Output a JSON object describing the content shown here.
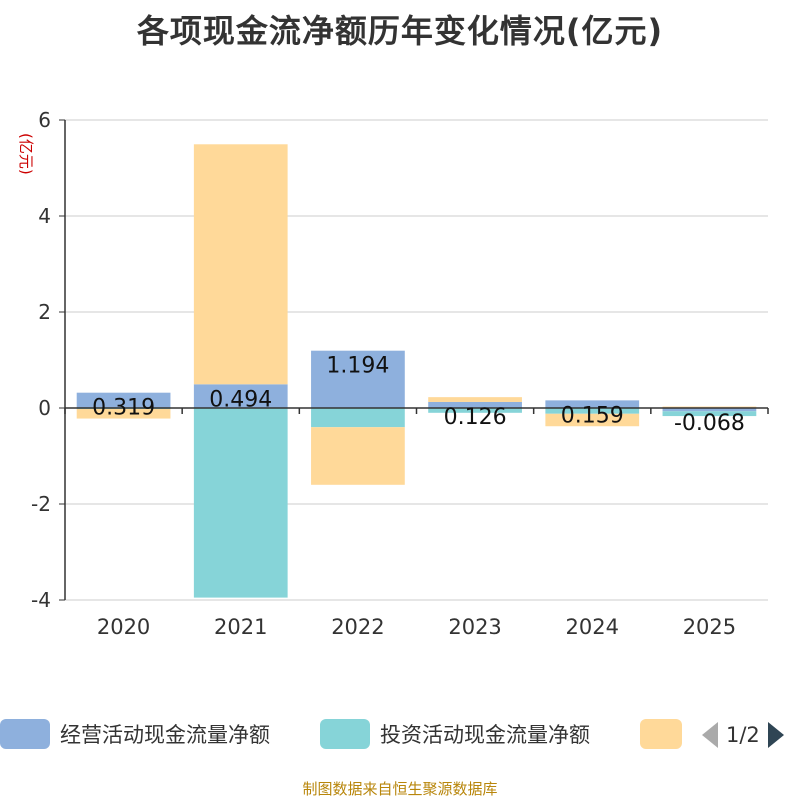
{
  "chart_data": {
    "type": "bar",
    "stacked": true,
    "title": "各项现金流净额历年变化情况(亿元)",
    "ylabel": "(亿元)",
    "categories": [
      "2020",
      "2021",
      "2022",
      "2023",
      "2024",
      "2025"
    ],
    "ylim": [
      -4,
      6
    ],
    "yticks": [
      "6",
      "4",
      "2",
      "0",
      "-2",
      "-4"
    ],
    "grid": true,
    "legend_position": "bottom",
    "series": [
      {
        "name": "经营活动现金流量净额",
        "color": "#8eb0dd",
        "values": [
          0.319,
          0.494,
          1.194,
          0.126,
          0.159,
          -0.068
        ]
      },
      {
        "name": "投资活动现金流量净额",
        "color": "#86d4d8",
        "values": [
          -0.02,
          -3.95,
          -0.4,
          -0.1,
          -0.12,
          -0.1
        ]
      },
      {
        "name": "",
        "color": "#ffd999",
        "values": [
          -0.2,
          5.0,
          -1.2,
          0.1,
          -0.26,
          0.03
        ]
      }
    ],
    "data_labels": [
      "0.319",
      "0.494",
      "1.194",
      "0.126",
      "0.159",
      "-0.068"
    ]
  },
  "legend": {
    "item1": "经营活动现金流量净额",
    "item2": "投资活动现金流量净额",
    "page": "1/2"
  },
  "source": "制图数据来自恒生聚源数据库"
}
